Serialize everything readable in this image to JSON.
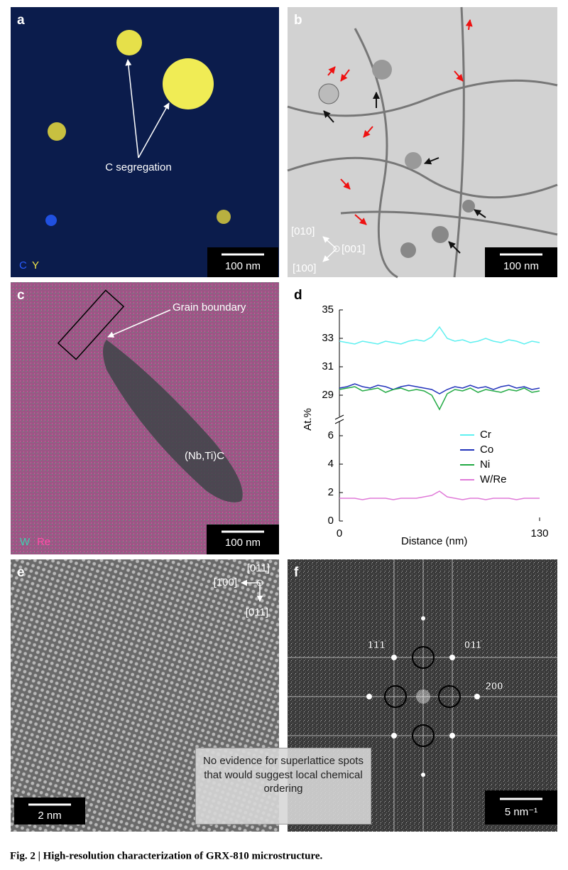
{
  "panels": {
    "a": {
      "letter": "a",
      "label": "C segregation",
      "legend": [
        "C",
        "Y"
      ],
      "scale_bar": "100 nm"
    },
    "b": {
      "letter": "b",
      "directions": [
        "[010]",
        "[001]",
        "[100]"
      ],
      "scale_bar": "100 nm"
    },
    "c": {
      "letter": "c",
      "labels": [
        "Grain boundary",
        "(Nb,Ti)C"
      ],
      "legend": [
        "W",
        "Re"
      ],
      "scale_bar": "100 nm"
    },
    "d": {
      "letter": "d"
    },
    "e": {
      "letter": "e",
      "directions": [
        "[011]",
        "[1̄00]",
        "[011]"
      ],
      "scale_bar": "2 nm"
    },
    "f": {
      "letter": "f",
      "spots": [
        "1̄1̄1̄",
        "011̄",
        "200"
      ],
      "note": "No evidence for superlattice spots that would suggest local chemical ordering",
      "scale_bar": "5 nm⁻¹"
    }
  },
  "chart_data": {
    "type": "line",
    "xlabel": "Distance (nm)",
    "ylabel": "At.%",
    "x": [
      0,
      5,
      10,
      15,
      20,
      25,
      30,
      35,
      40,
      45,
      50,
      55,
      60,
      65,
      70,
      75,
      80,
      85,
      90,
      95,
      100,
      105,
      110,
      115,
      120,
      125,
      130
    ],
    "series": [
      {
        "name": "Cr",
        "color": "#5ff0f0",
        "values": [
          32.8,
          32.7,
          32.6,
          32.8,
          32.7,
          32.6,
          32.8,
          32.7,
          32.6,
          32.8,
          32.9,
          32.8,
          33.1,
          33.8,
          33.0,
          32.8,
          32.9,
          32.7,
          32.8,
          33.0,
          32.8,
          32.7,
          32.9,
          32.8,
          32.6,
          32.8,
          32.7
        ]
      },
      {
        "name": "Co",
        "color": "#2233bb",
        "values": [
          29.5,
          29.6,
          29.8,
          29.6,
          29.5,
          29.7,
          29.6,
          29.4,
          29.6,
          29.7,
          29.6,
          29.5,
          29.4,
          29.1,
          29.4,
          29.6,
          29.5,
          29.7,
          29.5,
          29.6,
          29.4,
          29.6,
          29.7,
          29.5,
          29.6,
          29.4,
          29.5
        ]
      },
      {
        "name": "Ni",
        "color": "#22aa44",
        "values": [
          29.4,
          29.5,
          29.6,
          29.3,
          29.4,
          29.5,
          29.2,
          29.4,
          29.5,
          29.3,
          29.4,
          29.3,
          29.0,
          28.0,
          29.1,
          29.4,
          29.3,
          29.5,
          29.2,
          29.4,
          29.3,
          29.2,
          29.4,
          29.3,
          29.5,
          29.2,
          29.3
        ]
      },
      {
        "name": "W/Re",
        "color": "#e07ad8",
        "values": [
          1.6,
          1.6,
          1.6,
          1.5,
          1.6,
          1.6,
          1.6,
          1.5,
          1.6,
          1.6,
          1.6,
          1.7,
          1.8,
          2.1,
          1.7,
          1.6,
          1.5,
          1.6,
          1.6,
          1.5,
          1.6,
          1.6,
          1.6,
          1.5,
          1.6,
          1.6,
          1.6
        ]
      }
    ],
    "xlim": [
      0,
      130
    ],
    "xticks": [
      0,
      130
    ],
    "ylim": [
      0,
      35
    ],
    "ybreak": [
      7,
      27.5
    ],
    "yticks": [
      0,
      2,
      4,
      6,
      29,
      31,
      33,
      35
    ],
    "grid": false,
    "legend": "right"
  },
  "caption": "Fig. 2 | High-resolution characterization of GRX-810 microstructure."
}
